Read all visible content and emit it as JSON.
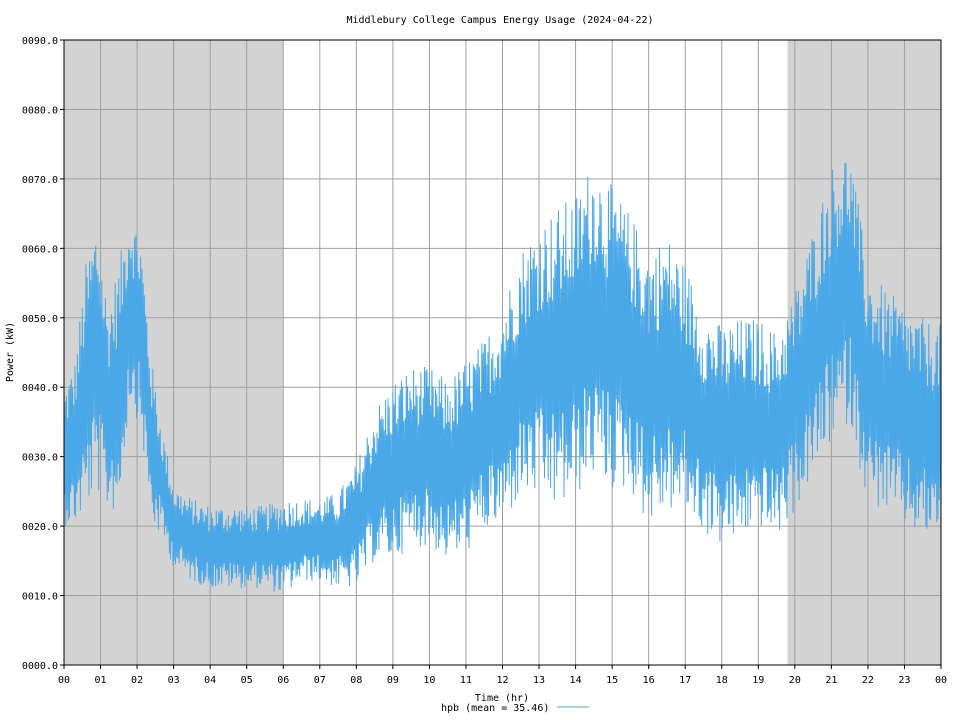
{
  "chart_data": {
    "type": "line",
    "title": "Middlebury College Campus Energy Usage (2024-04-22)",
    "xlabel": "Time (hr)",
    "ylabel": "Power (kW)",
    "xlim": [
      0,
      24
    ],
    "ylim": [
      0,
      90
    ],
    "x_ticks": [
      "00",
      "01",
      "02",
      "03",
      "04",
      "05",
      "06",
      "07",
      "08",
      "09",
      "10",
      "11",
      "12",
      "13",
      "14",
      "15",
      "16",
      "17",
      "18",
      "19",
      "20",
      "21",
      "22",
      "23",
      "00"
    ],
    "y_ticks": [
      "0000.0",
      "0010.0",
      "0020.0",
      "0030.0",
      "0040.0",
      "0050.0",
      "0060.0",
      "0070.0",
      "0080.0",
      "0090.0"
    ],
    "grid": true,
    "shaded_hours": [
      [
        0,
        6
      ],
      [
        19.8,
        24
      ]
    ],
    "shade_color": "#d3d3d3",
    "legend_position": "bottom-center",
    "series": [
      {
        "name": "hpb",
        "legend_label": "hpb (mean = 35.46)",
        "color": "#4aa8e8",
        "anchors_x": [
          0,
          0.3,
          0.6,
          0.9,
          1.2,
          1.5,
          1.8,
          2.1,
          2.4,
          2.7,
          3.0,
          3.5,
          4.0,
          4.5,
          5.0,
          5.5,
          6.0,
          6.5,
          7.0,
          7.5,
          8.0,
          8.5,
          9.0,
          9.5,
          10.0,
          10.5,
          11.0,
          11.5,
          12.0,
          12.5,
          13.0,
          13.5,
          14.0,
          14.5,
          15.0,
          15.5,
          16.0,
          16.5,
          17.0,
          17.5,
          18.0,
          18.5,
          19.0,
          19.5,
          20.0,
          20.5,
          21.0,
          21.5,
          22.0,
          22.5,
          23.0,
          23.5,
          24.0
        ],
        "anchors_center": [
          30,
          32,
          40,
          45,
          37,
          40,
          52,
          48,
          32,
          26,
          20,
          18,
          17,
          17,
          17,
          17,
          17,
          18,
          18,
          18,
          20,
          26,
          28,
          30,
          30,
          28,
          30,
          33,
          36,
          42,
          44,
          44,
          46,
          50,
          47,
          45,
          40,
          42,
          40,
          35,
          33,
          34,
          35,
          33,
          38,
          45,
          52,
          55,
          40,
          38,
          36,
          34,
          34
        ],
        "anchors_swing": [
          10,
          12,
          18,
          20,
          15,
          18,
          14,
          14,
          12,
          8,
          6,
          6,
          6,
          6,
          6,
          6,
          7,
          6,
          6,
          7,
          9,
          11,
          13,
          13,
          13,
          13,
          14,
          14,
          16,
          18,
          20,
          22,
          22,
          23,
          22,
          20,
          20,
          20,
          18,
          16,
          16,
          16,
          15,
          15,
          16,
          18,
          20,
          20,
          17,
          16,
          16,
          16,
          15
        ]
      }
    ]
  }
}
